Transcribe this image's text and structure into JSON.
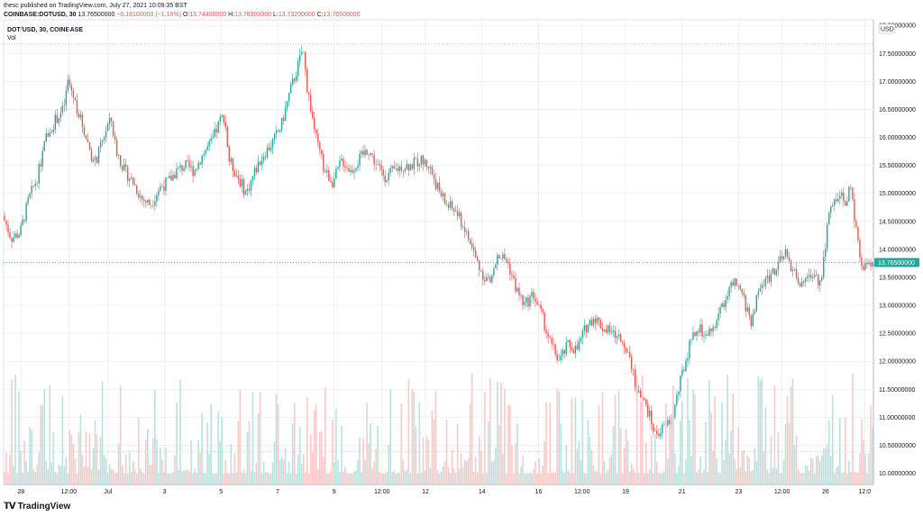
{
  "header": {
    "published": "thesc published on TradingView.com, July 27, 2021 10:09:35 BST",
    "author": "thesc"
  },
  "quote": {
    "symbol": "COINBASE:DOTUSD, 30",
    "last": "13.76500000",
    "change": "−0.16100000 (−1.16%)",
    "open_label": "O:",
    "open": "13.74400000",
    "high_label": "H:",
    "high": "13.78300000",
    "low_label": "L:",
    "low": "13.73200000",
    "close_label": "C:",
    "close": "13.76500000"
  },
  "legend": {
    "title": "DOT/USD, 30, COINBASE",
    "vol": "Vol"
  },
  "currency": "USD",
  "last_price_label": "13.76500000",
  "brand": "TradingView",
  "colors": {
    "up": "#26a69a",
    "down": "#ef5350",
    "vol_up": "#b2dfdb",
    "vol_down": "#f8c4c3",
    "last_line": "#26a69a",
    "high_line": "#ef9a9a",
    "grid": "#eef0f3"
  },
  "chart_data": {
    "type": "candlestick",
    "title": "DOT/USD, 30, COINBASE",
    "y_axis": {
      "range": [
        9.8,
        18.1
      ],
      "ticks": [
        "10.00000000",
        "10.50000000",
        "11.00000000",
        "11.50000000",
        "12.00000000",
        "12.50000000",
        "13.00000000",
        "13.50000000",
        "14.00000000",
        "14.50000000",
        "15.00000000",
        "15.50000000",
        "16.00000000",
        "16.50000000",
        "17.00000000",
        "17.50000000",
        "18.00000000"
      ],
      "tick_values": [
        10,
        10.5,
        11,
        11.5,
        12,
        12.5,
        13,
        13.5,
        14,
        14.5,
        15,
        15.5,
        16,
        16.5,
        17,
        17.5,
        18
      ]
    },
    "x_axis": {
      "ticks": [
        "28",
        "12:00",
        "Jul",
        "3",
        "5",
        "7",
        "9",
        "12:00",
        "12",
        "14",
        "16",
        "12:00",
        "19",
        "21",
        "23",
        "12:00",
        "26",
        "12:0"
      ],
      "tick_positions": [
        0.02,
        0.075,
        0.12,
        0.185,
        0.25,
        0.315,
        0.38,
        0.435,
        0.485,
        0.55,
        0.615,
        0.665,
        0.715,
        0.78,
        0.845,
        0.895,
        0.945,
        0.99
      ]
    },
    "close_path": [
      [
        0.0,
        14.6
      ],
      [
        0.01,
        14.2
      ],
      [
        0.02,
        14.3
      ],
      [
        0.03,
        14.9
      ],
      [
        0.04,
        15.3
      ],
      [
        0.05,
        16.0
      ],
      [
        0.06,
        16.3
      ],
      [
        0.07,
        16.5
      ],
      [
        0.075,
        17.0
      ],
      [
        0.08,
        16.8
      ],
      [
        0.09,
        16.3
      ],
      [
        0.1,
        15.8
      ],
      [
        0.105,
        15.5
      ],
      [
        0.11,
        15.7
      ],
      [
        0.12,
        16.2
      ],
      [
        0.125,
        16.3
      ],
      [
        0.13,
        15.8
      ],
      [
        0.14,
        15.4
      ],
      [
        0.15,
        15.2
      ],
      [
        0.16,
        14.9
      ],
      [
        0.17,
        14.8
      ],
      [
        0.18,
        15.1
      ],
      [
        0.19,
        15.2
      ],
      [
        0.2,
        15.4
      ],
      [
        0.21,
        15.5
      ],
      [
        0.22,
        15.4
      ],
      [
        0.23,
        15.7
      ],
      [
        0.24,
        15.9
      ],
      [
        0.25,
        16.3
      ],
      [
        0.255,
        16.4
      ],
      [
        0.26,
        15.6
      ],
      [
        0.27,
        15.3
      ],
      [
        0.28,
        15.0
      ],
      [
        0.29,
        15.4
      ],
      [
        0.3,
        15.7
      ],
      [
        0.31,
        15.9
      ],
      [
        0.32,
        16.2
      ],
      [
        0.33,
        16.8
      ],
      [
        0.34,
        17.3
      ],
      [
        0.345,
        17.6
      ],
      [
        0.35,
        16.9
      ],
      [
        0.36,
        16.0
      ],
      [
        0.37,
        15.4
      ],
      [
        0.38,
        15.2
      ],
      [
        0.39,
        15.6
      ],
      [
        0.4,
        15.4
      ],
      [
        0.41,
        15.6
      ],
      [
        0.42,
        15.8
      ],
      [
        0.43,
        15.5
      ],
      [
        0.44,
        15.3
      ],
      [
        0.45,
        15.4
      ],
      [
        0.46,
        15.5
      ],
      [
        0.47,
        15.5
      ],
      [
        0.48,
        15.6
      ],
      [
        0.49,
        15.5
      ],
      [
        0.5,
        15.1
      ],
      [
        0.51,
        14.8
      ],
      [
        0.52,
        14.7
      ],
      [
        0.53,
        14.4
      ],
      [
        0.54,
        14.0
      ],
      [
        0.55,
        13.6
      ],
      [
        0.56,
        13.4
      ],
      [
        0.57,
        13.9
      ],
      [
        0.58,
        13.8
      ],
      [
        0.59,
        13.3
      ],
      [
        0.6,
        13.0
      ],
      [
        0.61,
        13.2
      ],
      [
        0.62,
        12.8
      ],
      [
        0.63,
        12.3
      ],
      [
        0.64,
        12.0
      ],
      [
        0.65,
        12.3
      ],
      [
        0.66,
        12.2
      ],
      [
        0.67,
        12.6
      ],
      [
        0.68,
        12.8
      ],
      [
        0.69,
        12.6
      ],
      [
        0.7,
        12.5
      ],
      [
        0.71,
        12.4
      ],
      [
        0.72,
        12.2
      ],
      [
        0.73,
        11.4
      ],
      [
        0.74,
        11.2
      ],
      [
        0.75,
        10.7
      ],
      [
        0.76,
        10.8
      ],
      [
        0.77,
        11.0
      ],
      [
        0.78,
        11.7
      ],
      [
        0.79,
        12.3
      ],
      [
        0.8,
        12.6
      ],
      [
        0.81,
        12.4
      ],
      [
        0.82,
        12.7
      ],
      [
        0.83,
        13.1
      ],
      [
        0.84,
        13.4
      ],
      [
        0.85,
        13.2
      ],
      [
        0.86,
        12.7
      ],
      [
        0.87,
        13.3
      ],
      [
        0.88,
        13.5
      ],
      [
        0.89,
        13.7
      ],
      [
        0.9,
        13.9
      ],
      [
        0.91,
        13.6
      ],
      [
        0.92,
        13.3
      ],
      [
        0.93,
        13.6
      ],
      [
        0.94,
        13.4
      ],
      [
        0.95,
        14.6
      ],
      [
        0.96,
        15.0
      ],
      [
        0.97,
        14.8
      ],
      [
        0.975,
        15.2
      ],
      [
        0.98,
        14.4
      ],
      [
        0.985,
        14.0
      ],
      [
        0.99,
        13.6
      ],
      [
        0.995,
        13.8
      ],
      [
        1.0,
        13.765
      ]
    ],
    "last_price": 13.765,
    "high_line": 17.67,
    "low_line": 10.39,
    "volume_series": "Vol"
  }
}
